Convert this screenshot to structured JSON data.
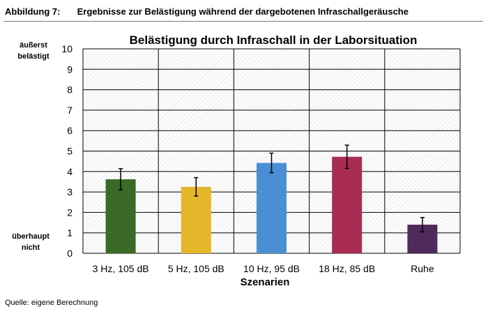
{
  "figure": {
    "caption_label": "Abbildung 7:",
    "caption_text": "Ergebnisse zur Belästigung während der dargebotenen Infraschallgeräusche",
    "source": "Quelle: eigene Berechnung"
  },
  "chart_data": {
    "type": "bar",
    "title": "Belästigung durch Infraschall in der Laborsituation",
    "xlabel": "Szenarien",
    "ylabel_top": [
      "äußerst",
      "belästigt"
    ],
    "ylabel_bottom": [
      "überhaupt",
      "nicht"
    ],
    "ylim": [
      0,
      10
    ],
    "yticks": [
      "0",
      "1",
      "2",
      "3",
      "4",
      "5",
      "6",
      "7",
      "8",
      "9",
      "10"
    ],
    "grid": true,
    "categories": [
      "3 Hz, 105 dB",
      "5 Hz, 105 dB",
      "10 Hz, 95 dB",
      "18 Hz, 85 dB",
      "Ruhe"
    ],
    "values": [
      3.62,
      3.25,
      4.42,
      4.72,
      1.4
    ],
    "error": [
      0.52,
      0.45,
      0.48,
      0.57,
      0.35
    ],
    "colors": [
      "#3a6a26",
      "#e6b62a",
      "#4a8fd3",
      "#a92d52",
      "#4e2b5a"
    ]
  }
}
